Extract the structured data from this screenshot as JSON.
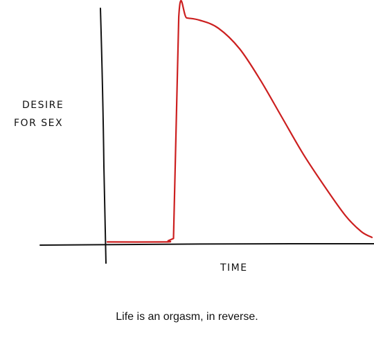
{
  "chart_data": {
    "type": "line",
    "title": "",
    "xlabel": "TIME",
    "ylabel_lines": [
      "DESIRE",
      "FOR SEX"
    ],
    "caption": "Life is an orgasm, in reverse.",
    "xlim": [
      0,
      100
    ],
    "ylim": [
      0,
      100
    ],
    "grid": false,
    "legend": "none",
    "line_color": "#cc1f1f",
    "axis_color": "#111111",
    "series": [
      {
        "x": [
          0,
          22,
          23,
          25,
          27,
          30,
          35,
          42,
          50,
          58,
          66,
          74,
          82,
          90,
          96,
          100
        ],
        "y": [
          0.5,
          0.5,
          1,
          2,
          99,
          98.5,
          97.5,
          94,
          85,
          71,
          55,
          39,
          25,
          12,
          5,
          2.5
        ]
      }
    ]
  }
}
